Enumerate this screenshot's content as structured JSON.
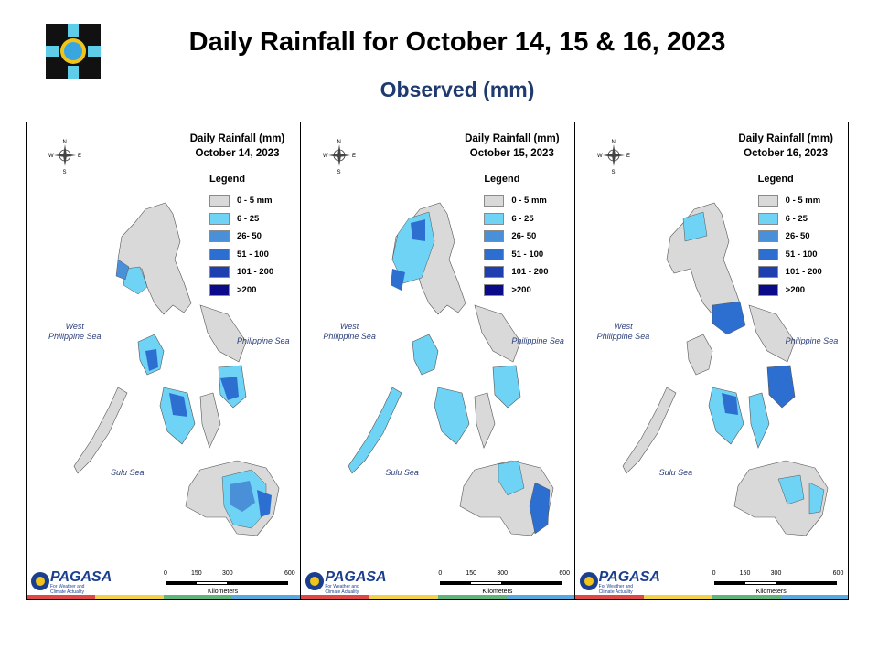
{
  "header": {
    "title": "Daily Rainfall for October 14, 15 & 16, 2023",
    "subtitle": "Observed (mm)"
  },
  "legend": {
    "title": "Legend",
    "classes": [
      {
        "label": "0 - 5 mm",
        "color": "#d9d9d9"
      },
      {
        "label": "6 - 25",
        "color": "#6ed3f5"
      },
      {
        "label": "26- 50",
        "color": "#4a90d9"
      },
      {
        "label": "51 - 100",
        "color": "#2c6fd1"
      },
      {
        "label": "101 - 200",
        "color": "#1d3fb0"
      },
      {
        "label": ">200",
        "color": "#0a0a8a"
      }
    ]
  },
  "panels": [
    {
      "heading": "Daily Rainfall (mm)",
      "date": "October 14, 2023"
    },
    {
      "heading": "Daily Rainfall (mm)",
      "date": "October 15, 2023"
    },
    {
      "heading": "Daily Rainfall (mm)",
      "date": "October 16, 2023"
    }
  ],
  "seas": {
    "west": "West\nPhilippine Sea",
    "east": "Philippine Sea",
    "sulu": "Sulu Sea"
  },
  "compass": {
    "n": "N",
    "s": "S",
    "e": "E",
    "w": "W"
  },
  "scale": {
    "ticks": [
      "0",
      "150",
      "300",
      "600"
    ],
    "unit": "Kilometers"
  },
  "brand": {
    "name": "PAGASA",
    "tagline": "For Weather and Climate Actuality"
  },
  "colors": {
    "land": "#d9d9d9",
    "light": "#6ed3f5",
    "mid": "#4a90d9",
    "dark": "#2c6fd1",
    "stripe": [
      "#e04848",
      "#f2d24a",
      "#5fb57a",
      "#58a9e0"
    ]
  }
}
